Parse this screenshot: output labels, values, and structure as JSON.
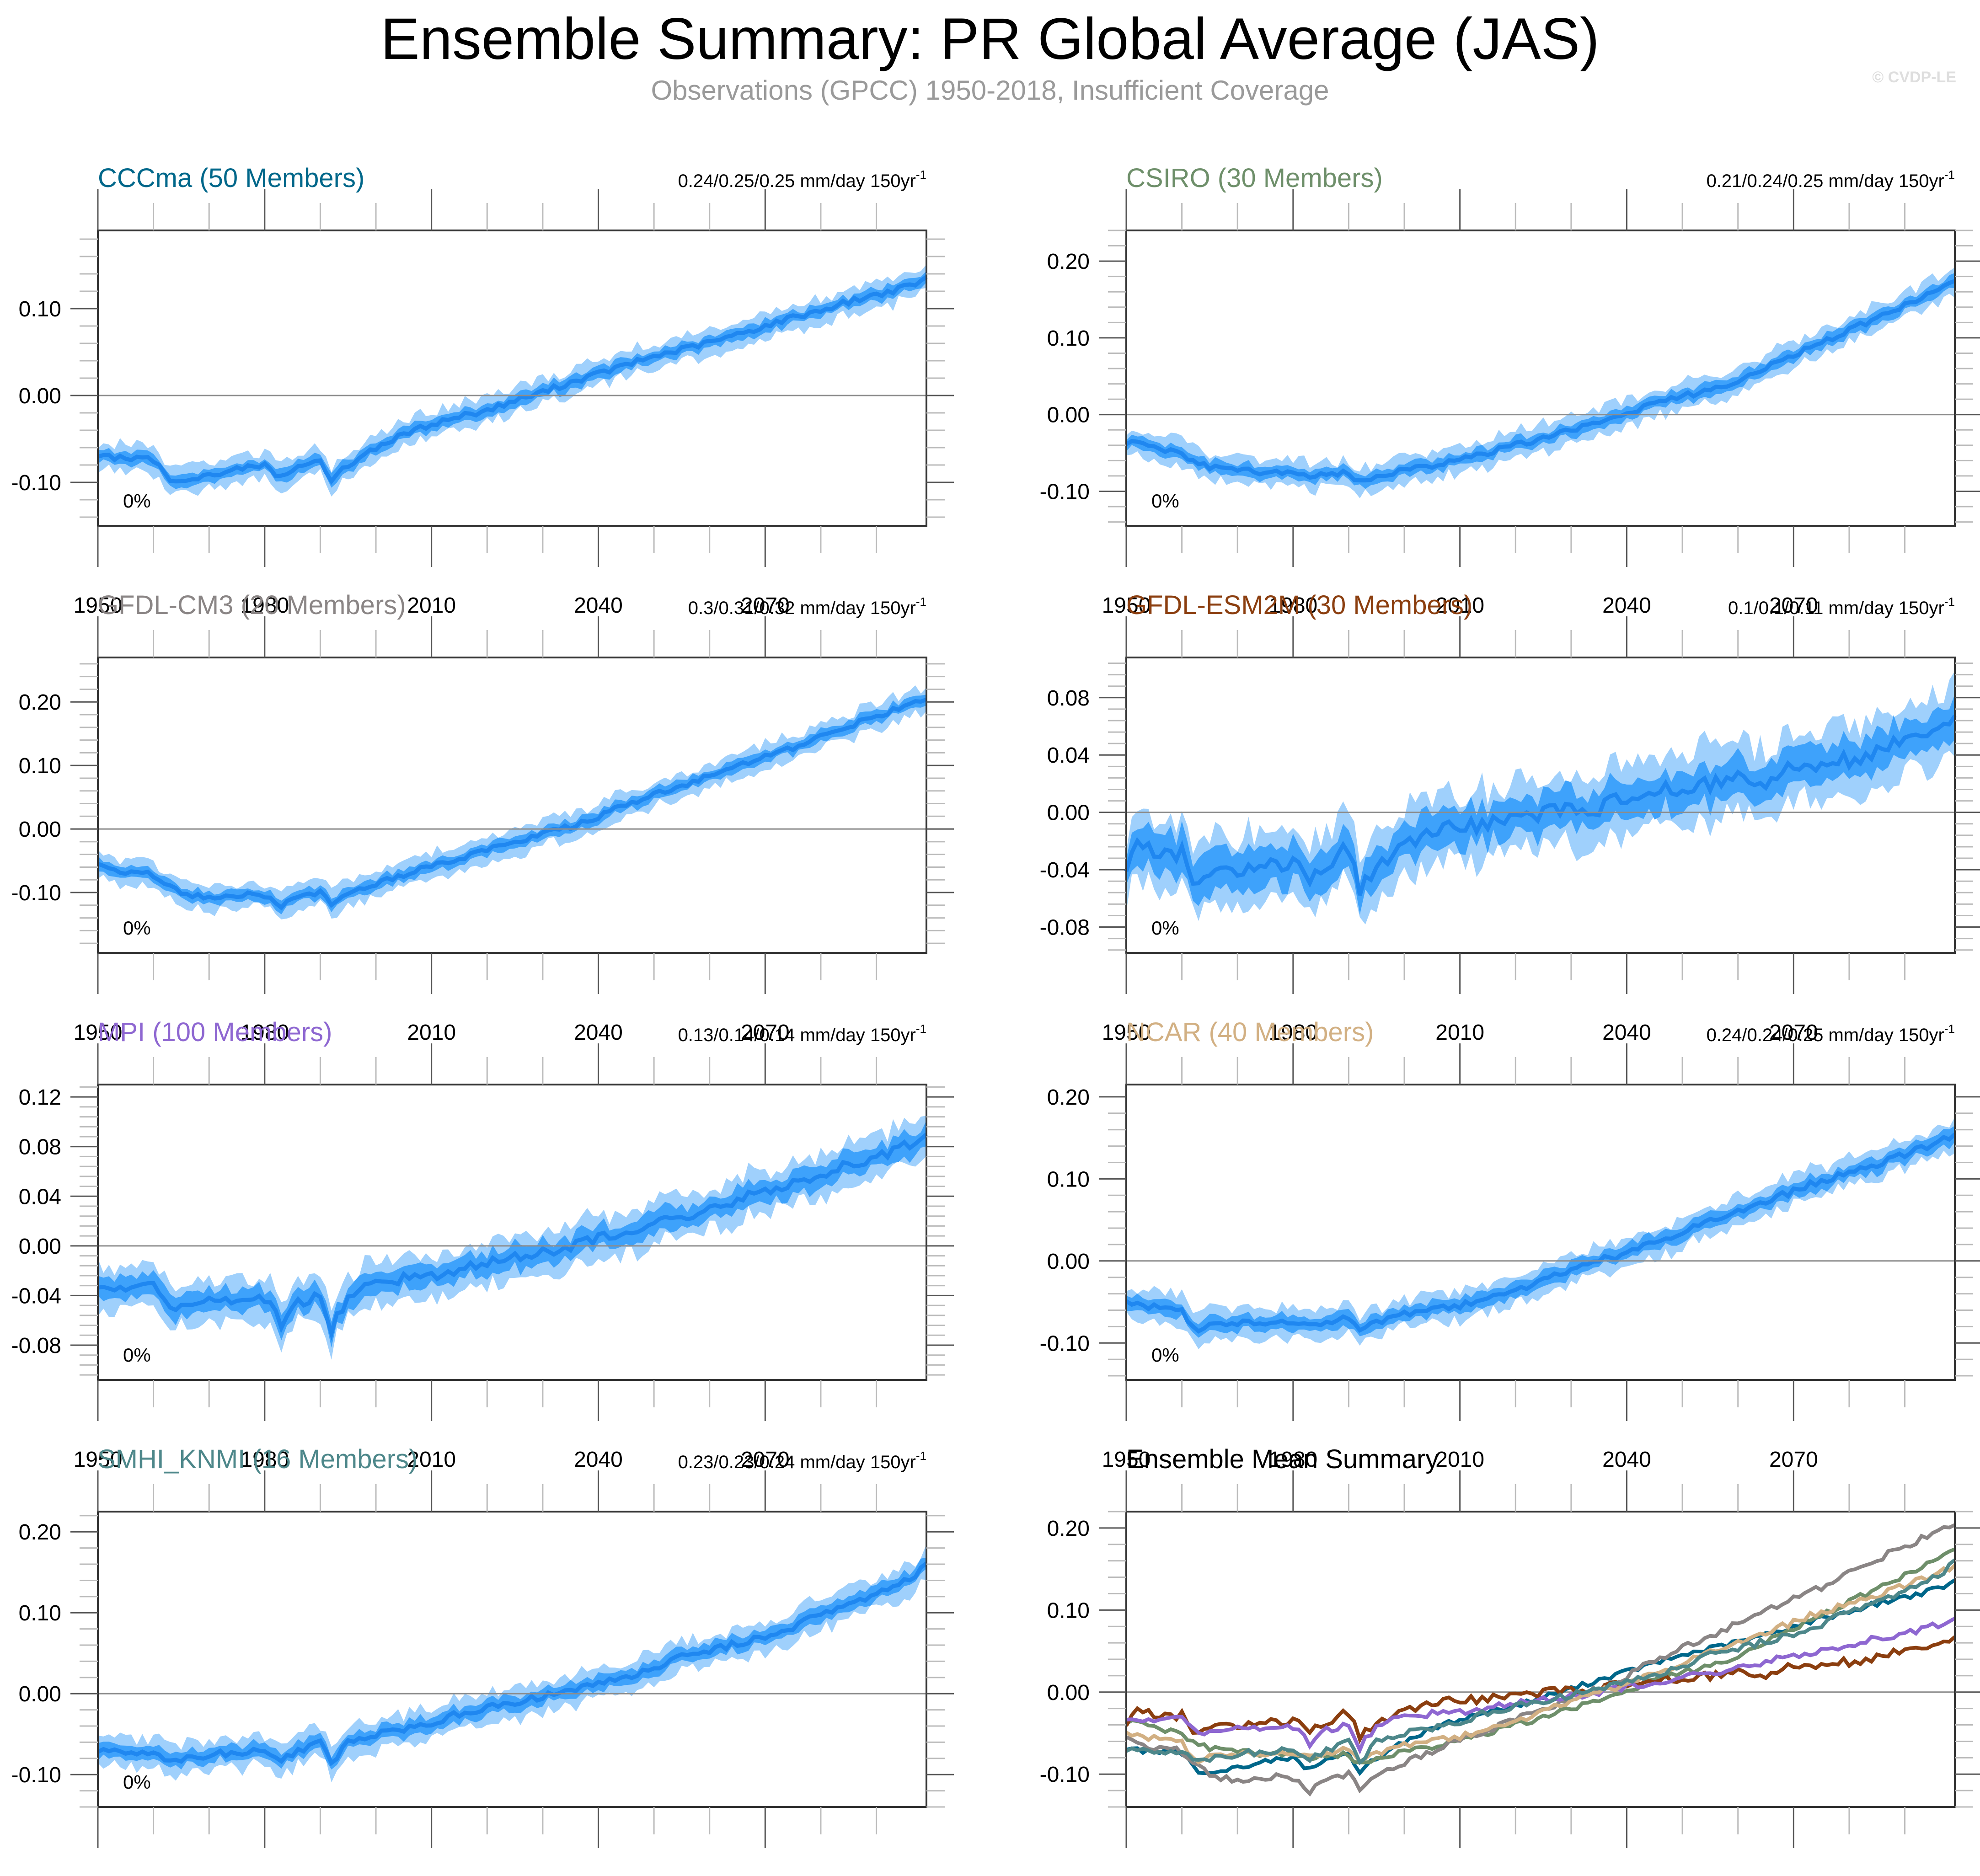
{
  "header": {
    "title": "Ensemble Summary: PR Global Average (JAS)",
    "subtitle": "Observations (GPCC) 1950-2018, Insufficient Coverage",
    "watermark": "© CVDP-LE"
  },
  "colors": {
    "band_outer": "#9fd0fc",
    "band_inner": "#3ea2fb",
    "mean_line": "#1f87f0",
    "zero_line": "#8c8c8c",
    "frame": "#333333"
  },
  "chart_data": [
    {
      "type": "area",
      "id": "cccma",
      "title": "CCCma (50 Members)",
      "title_color": "#00678a",
      "trend_text": "0.24/0.25/0.25 mm/day 150yr",
      "trend_sup": "-1",
      "annotation": "0%",
      "xlabel": "",
      "ylabel": "",
      "xlim": [
        1950,
        2099
      ],
      "ylim": [
        -0.15,
        0.19
      ],
      "x_ticks": [
        1950,
        1980,
        2010,
        2040,
        2070
      ],
      "y_ticks": [
        -0.1,
        0.0,
        0.1
      ],
      "y_tick_labels": [
        "-0.10",
        "0.00",
        "0.10"
      ],
      "x": [
        1950,
        1955,
        1960,
        1963,
        1965,
        1970,
        1975,
        1980,
        1983,
        1985,
        1990,
        1992,
        1995,
        2000,
        2005,
        2010,
        2015,
        2020,
        2025,
        2030,
        2035,
        2040,
        2045,
        2050,
        2055,
        2060,
        2065,
        2070,
        2075,
        2080,
        2085,
        2090,
        2095,
        2099
      ],
      "mean": [
        -0.068,
        -0.073,
        -0.074,
        -0.097,
        -0.096,
        -0.092,
        -0.085,
        -0.08,
        -0.095,
        -0.085,
        -0.074,
        -0.097,
        -0.08,
        -0.06,
        -0.045,
        -0.033,
        -0.024,
        -0.017,
        -0.006,
        0.004,
        0.015,
        0.025,
        0.035,
        0.045,
        0.053,
        0.061,
        0.07,
        0.08,
        0.09,
        0.098,
        0.108,
        0.116,
        0.124,
        0.134
      ],
      "inner_halfwidth": 0.007,
      "outer_halfwidth": 0.015
    },
    {
      "type": "area",
      "id": "csiro",
      "title": "CSIRO (30 Members)",
      "title_color": "#6e8f6a",
      "trend_text": "0.21/0.24/0.25 mm/day 150yr",
      "trend_sup": "-1",
      "annotation": "0%",
      "xlim": [
        1950,
        2099
      ],
      "ylim": [
        -0.145,
        0.24
      ],
      "x_ticks": [
        1950,
        1980,
        2010,
        2040,
        2070
      ],
      "y_ticks": [
        -0.1,
        0.0,
        0.1,
        0.2
      ],
      "y_tick_labels": [
        "-0.10",
        "0.00",
        "0.10",
        "0.20"
      ],
      "x": [
        1950,
        1955,
        1960,
        1963,
        1965,
        1970,
        1975,
        1980,
        1983,
        1985,
        1990,
        1992,
        1995,
        2000,
        2005,
        2010,
        2015,
        2020,
        2025,
        2030,
        2035,
        2040,
        2045,
        2050,
        2055,
        2060,
        2065,
        2070,
        2075,
        2080,
        2085,
        2090,
        2095,
        2099
      ],
      "mean": [
        -0.037,
        -0.042,
        -0.05,
        -0.065,
        -0.068,
        -0.072,
        -0.075,
        -0.076,
        -0.082,
        -0.078,
        -0.076,
        -0.089,
        -0.08,
        -0.072,
        -0.066,
        -0.058,
        -0.05,
        -0.04,
        -0.03,
        -0.02,
        -0.01,
        0.002,
        0.015,
        0.024,
        0.032,
        0.045,
        0.06,
        0.078,
        0.094,
        0.11,
        0.126,
        0.142,
        0.16,
        0.172
      ],
      "inner_halfwidth": 0.008,
      "outer_halfwidth": 0.018
    },
    {
      "type": "area",
      "id": "gfdl-cm3",
      "title": "GFDL-CM3 (20 Members)",
      "title_color": "#8a8585",
      "trend_text": "0.3/0.31/0.32 mm/day 150yr",
      "trend_sup": "-1",
      "annotation": "0%",
      "xlim": [
        1950,
        2099
      ],
      "ylim": [
        -0.195,
        0.27
      ],
      "x_ticks": [
        1950,
        1980,
        2010,
        2040,
        2070
      ],
      "y_ticks": [
        -0.1,
        0.0,
        0.1,
        0.2
      ],
      "y_tick_labels": [
        "-0.10",
        "0.00",
        "0.10",
        "0.20"
      ],
      "x": [
        1950,
        1955,
        1960,
        1963,
        1965,
        1970,
        1975,
        1980,
        1983,
        1985,
        1990,
        1992,
        1995,
        2000,
        2005,
        2010,
        2015,
        2020,
        2025,
        2030,
        2035,
        2040,
        2045,
        2050,
        2055,
        2060,
        2065,
        2070,
        2075,
        2080,
        2085,
        2090,
        2095,
        2099
      ],
      "mean": [
        -0.057,
        -0.068,
        -0.072,
        -0.09,
        -0.102,
        -0.107,
        -0.103,
        -0.105,
        -0.122,
        -0.11,
        -0.098,
        -0.122,
        -0.098,
        -0.085,
        -0.073,
        -0.058,
        -0.046,
        -0.034,
        -0.02,
        -0.008,
        0.004,
        0.02,
        0.038,
        0.054,
        0.068,
        0.083,
        0.098,
        0.113,
        0.127,
        0.145,
        0.162,
        0.178,
        0.192,
        0.205
      ],
      "inner_halfwidth": 0.009,
      "outer_halfwidth": 0.02
    },
    {
      "type": "area",
      "id": "gfdl-esm2m",
      "title": "GFDL-ESM2M (30 Members)",
      "title_color": "#8b3e0f",
      "trend_text": "0.1/0.1/0.11 mm/day 150yr",
      "trend_sup": "-1",
      "annotation": "0%",
      "xlim": [
        1950,
        2099
      ],
      "ylim": [
        -0.098,
        0.108
      ],
      "x_ticks": [
        1950,
        1980,
        2010,
        2040,
        2070
      ],
      "y_ticks": [
        -0.08,
        -0.04,
        0.0,
        0.04,
        0.08
      ],
      "y_tick_labels": [
        "-0.08",
        "-0.04",
        "0.00",
        "0.04",
        "0.08"
      ],
      "x": [
        1950,
        1952,
        1955,
        1960,
        1963,
        1965,
        1970,
        1975,
        1980,
        1983,
        1985,
        1990,
        1992,
        1995,
        2000,
        2005,
        2010,
        2015,
        2020,
        2025,
        2030,
        2035,
        2040,
        2045,
        2050,
        2055,
        2060,
        2065,
        2070,
        2075,
        2080,
        2085,
        2090,
        2095,
        2099
      ],
      "mean": [
        -0.036,
        -0.017,
        -0.032,
        -0.028,
        -0.052,
        -0.047,
        -0.04,
        -0.038,
        -0.034,
        -0.051,
        -0.04,
        -0.025,
        -0.053,
        -0.036,
        -0.022,
        -0.014,
        -0.009,
        -0.008,
        -0.005,
        0.001,
        0.002,
        0.003,
        0.01,
        0.013,
        0.018,
        0.02,
        0.026,
        0.022,
        0.03,
        0.036,
        0.037,
        0.043,
        0.05,
        0.057,
        0.068
      ],
      "inner_halfwidth": 0.013,
      "outer_halfwidth": 0.024
    },
    {
      "type": "area",
      "id": "mpi",
      "title": "MPI (100 Members)",
      "title_color": "#8e67d1",
      "trend_text": "0.13/0.14/0.14 mm/day 150yr",
      "trend_sup": "-1",
      "annotation": "0%",
      "xlim": [
        1950,
        2099
      ],
      "ylim": [
        -0.108,
        0.13
      ],
      "x_ticks": [
        1950,
        1980,
        2010,
        2040,
        2070
      ],
      "y_ticks": [
        -0.08,
        -0.04,
        0.0,
        0.04,
        0.08,
        0.12
      ],
      "y_tick_labels": [
        "-0.08",
        "-0.04",
        "0.00",
        "0.04",
        "0.08",
        "0.12"
      ],
      "x": [
        1950,
        1955,
        1960,
        1963,
        1965,
        1970,
        1975,
        1980,
        1983,
        1985,
        1990,
        1992,
        1995,
        2000,
        2005,
        2010,
        2015,
        2020,
        2025,
        2030,
        2035,
        2040,
        2045,
        2050,
        2055,
        2060,
        2065,
        2070,
        2075,
        2080,
        2085,
        2090,
        2095,
        2099
      ],
      "mean": [
        -0.03,
        -0.033,
        -0.033,
        -0.053,
        -0.045,
        -0.045,
        -0.043,
        -0.042,
        -0.063,
        -0.048,
        -0.038,
        -0.067,
        -0.04,
        -0.03,
        -0.026,
        -0.024,
        -0.018,
        -0.014,
        -0.01,
        -0.006,
        -0.001,
        0.006,
        0.012,
        0.018,
        0.023,
        0.03,
        0.037,
        0.044,
        0.051,
        0.058,
        0.065,
        0.072,
        0.08,
        0.09
      ],
      "inner_halfwidth": 0.009,
      "outer_halfwidth": 0.017
    },
    {
      "type": "area",
      "id": "ncar",
      "title": "NCAR (40 Members)",
      "title_color": "#d2b083",
      "trend_text": "0.24/0.24/0.25 mm/day 150yr",
      "trend_sup": "-1",
      "annotation": "0%",
      "xlim": [
        1950,
        2099
      ],
      "ylim": [
        -0.145,
        0.215
      ],
      "x_ticks": [
        1950,
        1980,
        2010,
        2040,
        2070
      ],
      "y_ticks": [
        -0.1,
        0.0,
        0.1,
        0.2
      ],
      "y_tick_labels": [
        "-0.10",
        "0.00",
        "0.10",
        "0.20"
      ],
      "x": [
        1950,
        1955,
        1960,
        1963,
        1965,
        1970,
        1975,
        1980,
        1983,
        1985,
        1990,
        1992,
        1995,
        2000,
        2005,
        2010,
        2015,
        2020,
        2025,
        2030,
        2035,
        2040,
        2045,
        2050,
        2055,
        2060,
        2065,
        2070,
        2075,
        2080,
        2085,
        2090,
        2095,
        2099
      ],
      "mean": [
        -0.05,
        -0.056,
        -0.062,
        -0.085,
        -0.078,
        -0.075,
        -0.074,
        -0.073,
        -0.08,
        -0.078,
        -0.07,
        -0.088,
        -0.075,
        -0.063,
        -0.06,
        -0.055,
        -0.045,
        -0.035,
        -0.023,
        -0.012,
        0.0,
        0.01,
        0.022,
        0.036,
        0.05,
        0.062,
        0.072,
        0.085,
        0.098,
        0.108,
        0.118,
        0.13,
        0.142,
        0.155
      ],
      "inner_halfwidth": 0.009,
      "outer_halfwidth": 0.018
    },
    {
      "type": "area",
      "id": "smhi-knmi",
      "title": "SMHI_KNMI (16 Members)",
      "title_color": "#4d878a",
      "trend_text": "0.23/0.23/0.24 mm/day 150yr",
      "trend_sup": "-1",
      "annotation": "0%",
      "xlim": [
        1950,
        2099
      ],
      "ylim": [
        -0.14,
        0.225
      ],
      "x_ticks": [
        1950,
        1980,
        2010,
        2040,
        2070
      ],
      "y_ticks": [
        -0.1,
        0.0,
        0.1,
        0.2
      ],
      "y_tick_labels": [
        "-0.10",
        "0.00",
        "0.10",
        "0.20"
      ],
      "x": [
        1950,
        1955,
        1960,
        1963,
        1965,
        1970,
        1975,
        1980,
        1983,
        1985,
        1990,
        1992,
        1995,
        2000,
        2005,
        2010,
        2015,
        2020,
        2025,
        2030,
        2035,
        2040,
        2045,
        2050,
        2055,
        2060,
        2065,
        2070,
        2075,
        2080,
        2085,
        2090,
        2095,
        2099
      ],
      "mean": [
        -0.068,
        -0.072,
        -0.073,
        -0.085,
        -0.083,
        -0.075,
        -0.074,
        -0.07,
        -0.082,
        -0.075,
        -0.06,
        -0.085,
        -0.06,
        -0.05,
        -0.045,
        -0.036,
        -0.025,
        -0.018,
        -0.01,
        -0.003,
        0.005,
        0.012,
        0.02,
        0.03,
        0.045,
        0.052,
        0.062,
        0.07,
        0.082,
        0.098,
        0.11,
        0.125,
        0.138,
        0.158
      ],
      "inner_halfwidth": 0.009,
      "outer_halfwidth": 0.019
    },
    {
      "type": "line",
      "id": "ensemble-mean-summary",
      "title": "Ensemble Mean Summary",
      "title_color": "#000000",
      "trend_text": "",
      "trend_sup": "",
      "annotation": "",
      "xlim": [
        1950,
        2099
      ],
      "ylim": [
        -0.14,
        0.22
      ],
      "x_ticks": [
        1950,
        1980,
        2010,
        2040,
        2070
      ],
      "y_ticks": [
        -0.1,
        0.0,
        0.1,
        0.2
      ],
      "y_tick_labels": [
        "-0.10",
        "0.00",
        "0.10",
        "0.20"
      ],
      "x": [
        1950,
        1955,
        1960,
        1963,
        1965,
        1970,
        1975,
        1980,
        1983,
        1985,
        1990,
        1992,
        1995,
        2000,
        2005,
        2010,
        2015,
        2020,
        2025,
        2030,
        2035,
        2040,
        2045,
        2050,
        2055,
        2060,
        2065,
        2070,
        2075,
        2080,
        2085,
        2090,
        2095,
        2099
      ],
      "series": [
        {
          "name": "CCCma",
          "color": "#00678a",
          "ref": 0
        },
        {
          "name": "CSIRO",
          "color": "#6e8f6a",
          "ref": 1
        },
        {
          "name": "GFDL-CM3",
          "color": "#8a8585",
          "ref": 2
        },
        {
          "name": "GFDL-ESM2M",
          "color": "#8b3e0f",
          "ref": 3
        },
        {
          "name": "MPI",
          "color": "#8e67d1",
          "ref": 4
        },
        {
          "name": "NCAR",
          "color": "#d2b083",
          "ref": 5
        },
        {
          "name": "SMHI_KNMI",
          "color": "#4d878a",
          "ref": 6
        }
      ]
    }
  ]
}
